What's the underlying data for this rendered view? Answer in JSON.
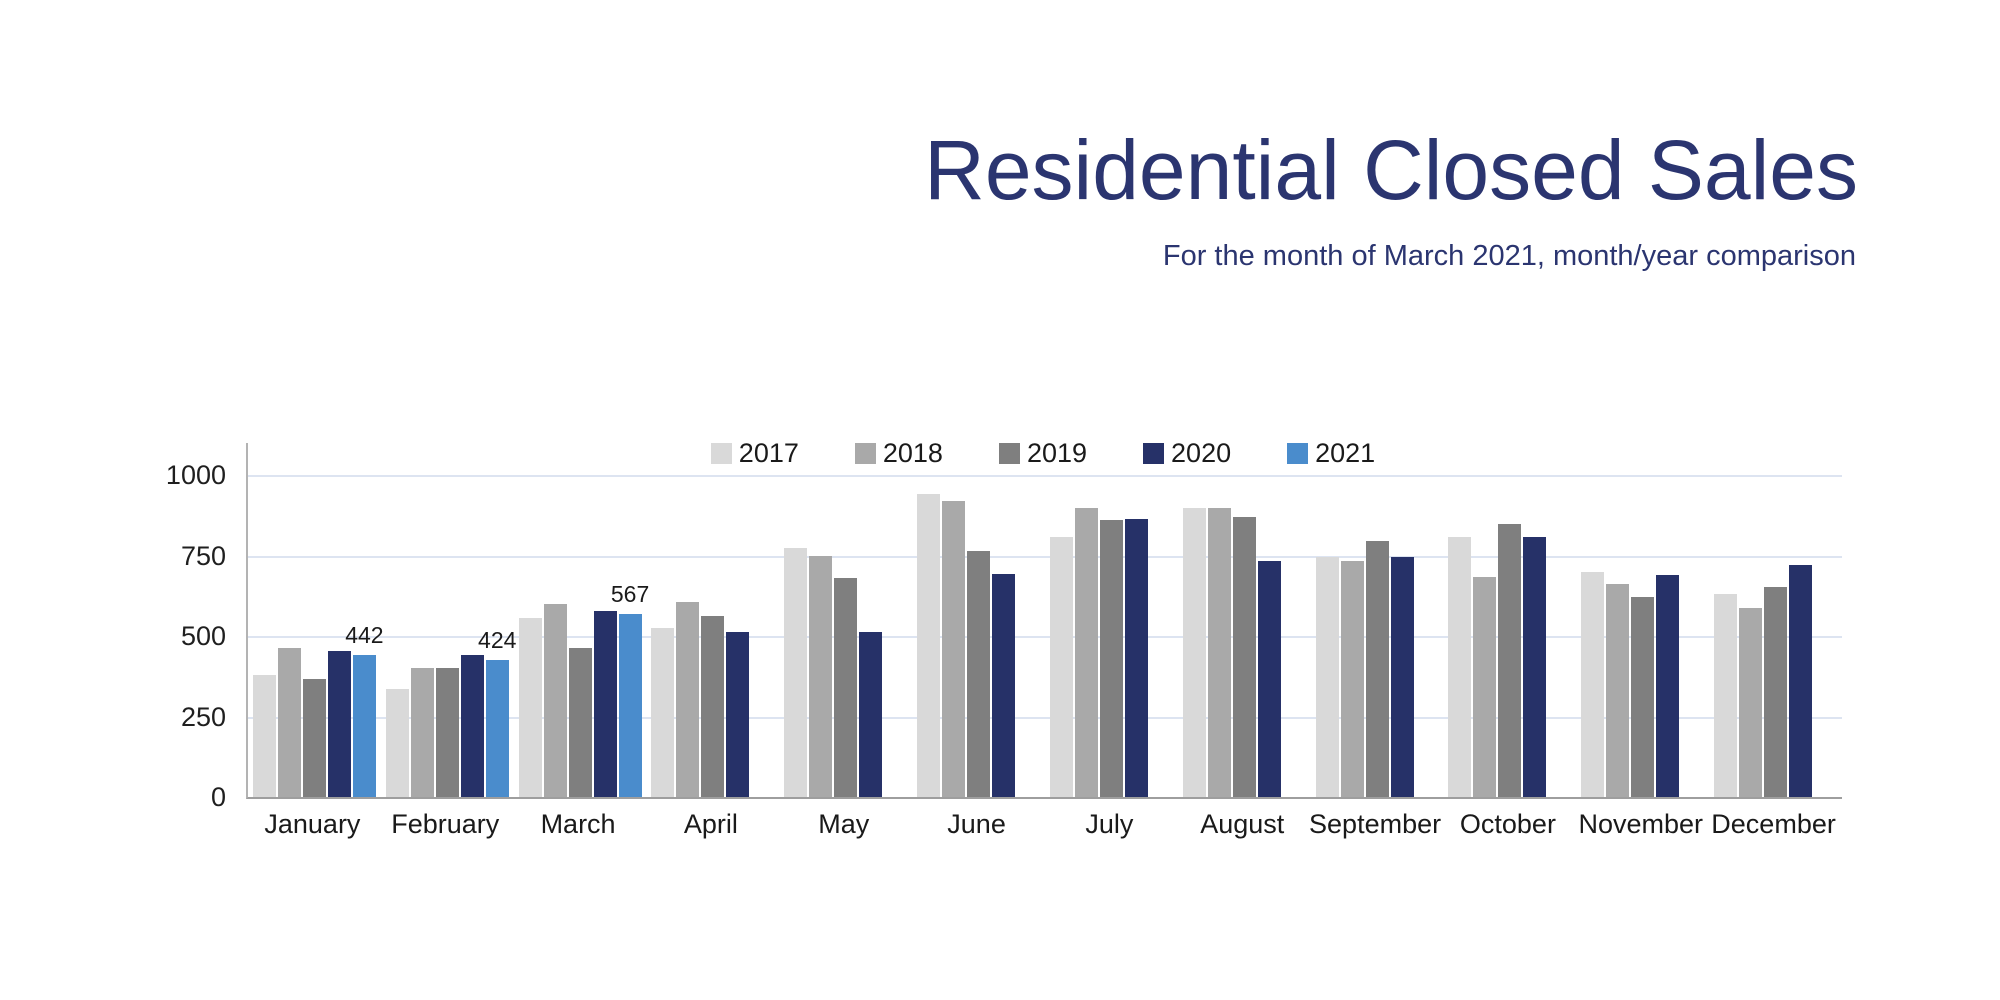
{
  "chart_data": {
    "type": "bar",
    "title": "Residential Closed Sales",
    "subtitle": "For the month of March 2021, month/year comparison",
    "title_color": "#2b3570",
    "categories": [
      "January",
      "February",
      "March",
      "April",
      "May",
      "June",
      "July",
      "August",
      "September",
      "October",
      "November",
      "December"
    ],
    "series": [
      {
        "name": "2017",
        "color": "#d9d9d9",
        "show_value_labels": false,
        "values": [
          378,
          336,
          556,
          524,
          772,
          942,
          807,
          899,
          744,
          806,
          700,
          629
        ]
      },
      {
        "name": "2018",
        "color": "#a9a9a9",
        "show_value_labels": false,
        "values": [
          462,
          400,
          600,
          606,
          750,
          920,
          899,
          899,
          733,
          682,
          660,
          586
        ]
      },
      {
        "name": "2019",
        "color": "#7f7f7f",
        "show_value_labels": false,
        "values": [
          368,
          400,
          464,
          561,
          679,
          763,
          859,
          871,
          794,
          849,
          620,
          651
        ]
      },
      {
        "name": "2020",
        "color": "#263168",
        "show_value_labels": false,
        "values": [
          452,
          440,
          578,
          512,
          512,
          694,
          862,
          732,
          745,
          809,
          691,
          722
        ]
      },
      {
        "name": "2021",
        "color": "#4a8ccc",
        "show_value_labels": true,
        "values": [
          442,
          424,
          567,
          null,
          null,
          null,
          null,
          null,
          null,
          null,
          null,
          null
        ]
      }
    ],
    "y_axis": {
      "min": 0,
      "max": 1000,
      "ticks": [
        0,
        250,
        500,
        750,
        1000
      ]
    },
    "x_axis_label": "",
    "y_axis_label": "",
    "legend_position": "top-center",
    "grid": true,
    "colors": {
      "gridline": "#dde4f1",
      "axis_line": "#9e9e9e",
      "tick_text": "#1f1f1f"
    }
  }
}
